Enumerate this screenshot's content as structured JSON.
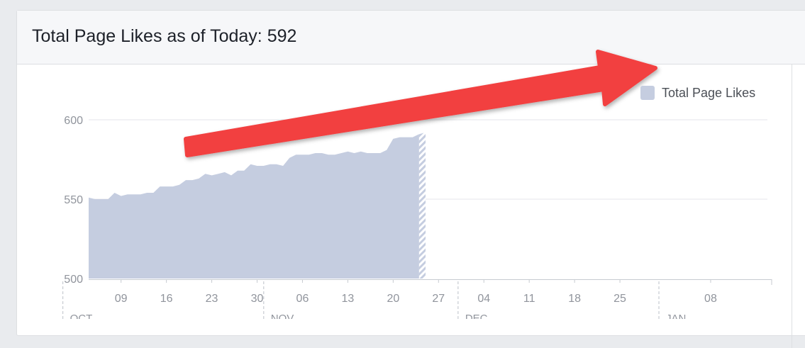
{
  "header": {
    "title": "Total Page Likes as of Today: 592"
  },
  "colors": {
    "area": "#c5cde0",
    "grid": "#e4e6eb",
    "axis": "#c7cbd1",
    "tick_text": "#90949c",
    "arrow": "#f24141"
  },
  "annotation": {
    "arrow_icon": "red-arrow-icon"
  },
  "chart_data": {
    "type": "area",
    "ylim": [
      500,
      600
    ],
    "yticks": [
      500,
      550,
      600
    ],
    "grid": true,
    "legend": {
      "position": "top-right",
      "label": "Total Page Likes"
    },
    "series": [
      {
        "name": "Total Page Likes",
        "x_start": "2016-10-04",
        "values": [
          551,
          550,
          550,
          550,
          554,
          552,
          553,
          553,
          553,
          554,
          554,
          558,
          558,
          558,
          559,
          562,
          562,
          563,
          566,
          565,
          566,
          567,
          565,
          568,
          568,
          572,
          571,
          571,
          572,
          572,
          571,
          576,
          578,
          578,
          578,
          579,
          579,
          578,
          578,
          579,
          580,
          579,
          580,
          579,
          579,
          579,
          581,
          588,
          589,
          589,
          589,
          591,
          592
        ],
        "projected_from_index": 51
      }
    ],
    "x_tick_labels": [
      {
        "date": "2016-10-09",
        "label": "09"
      },
      {
        "date": "2016-10-16",
        "label": "16"
      },
      {
        "date": "2016-10-23",
        "label": "23"
      },
      {
        "date": "2016-10-30",
        "label": "30"
      },
      {
        "date": "2016-11-06",
        "label": "06"
      },
      {
        "date": "2016-11-13",
        "label": "13"
      },
      {
        "date": "2016-11-20",
        "label": "20"
      },
      {
        "date": "2016-11-27",
        "label": "27"
      },
      {
        "date": "2016-12-04",
        "label": "04"
      },
      {
        "date": "2016-12-11",
        "label": "11"
      },
      {
        "date": "2016-12-18",
        "label": "18"
      },
      {
        "date": "2016-12-25",
        "label": "25"
      },
      {
        "date": "2017-01-08",
        "label": "08"
      }
    ],
    "month_labels": [
      {
        "date": "2016-10-01",
        "label": "OCT"
      },
      {
        "date": "2016-11-01",
        "label": "NOV"
      },
      {
        "date": "2016-12-01",
        "label": "DEC"
      },
      {
        "date": "2017-01-01",
        "label": "JAN"
      }
    ]
  }
}
